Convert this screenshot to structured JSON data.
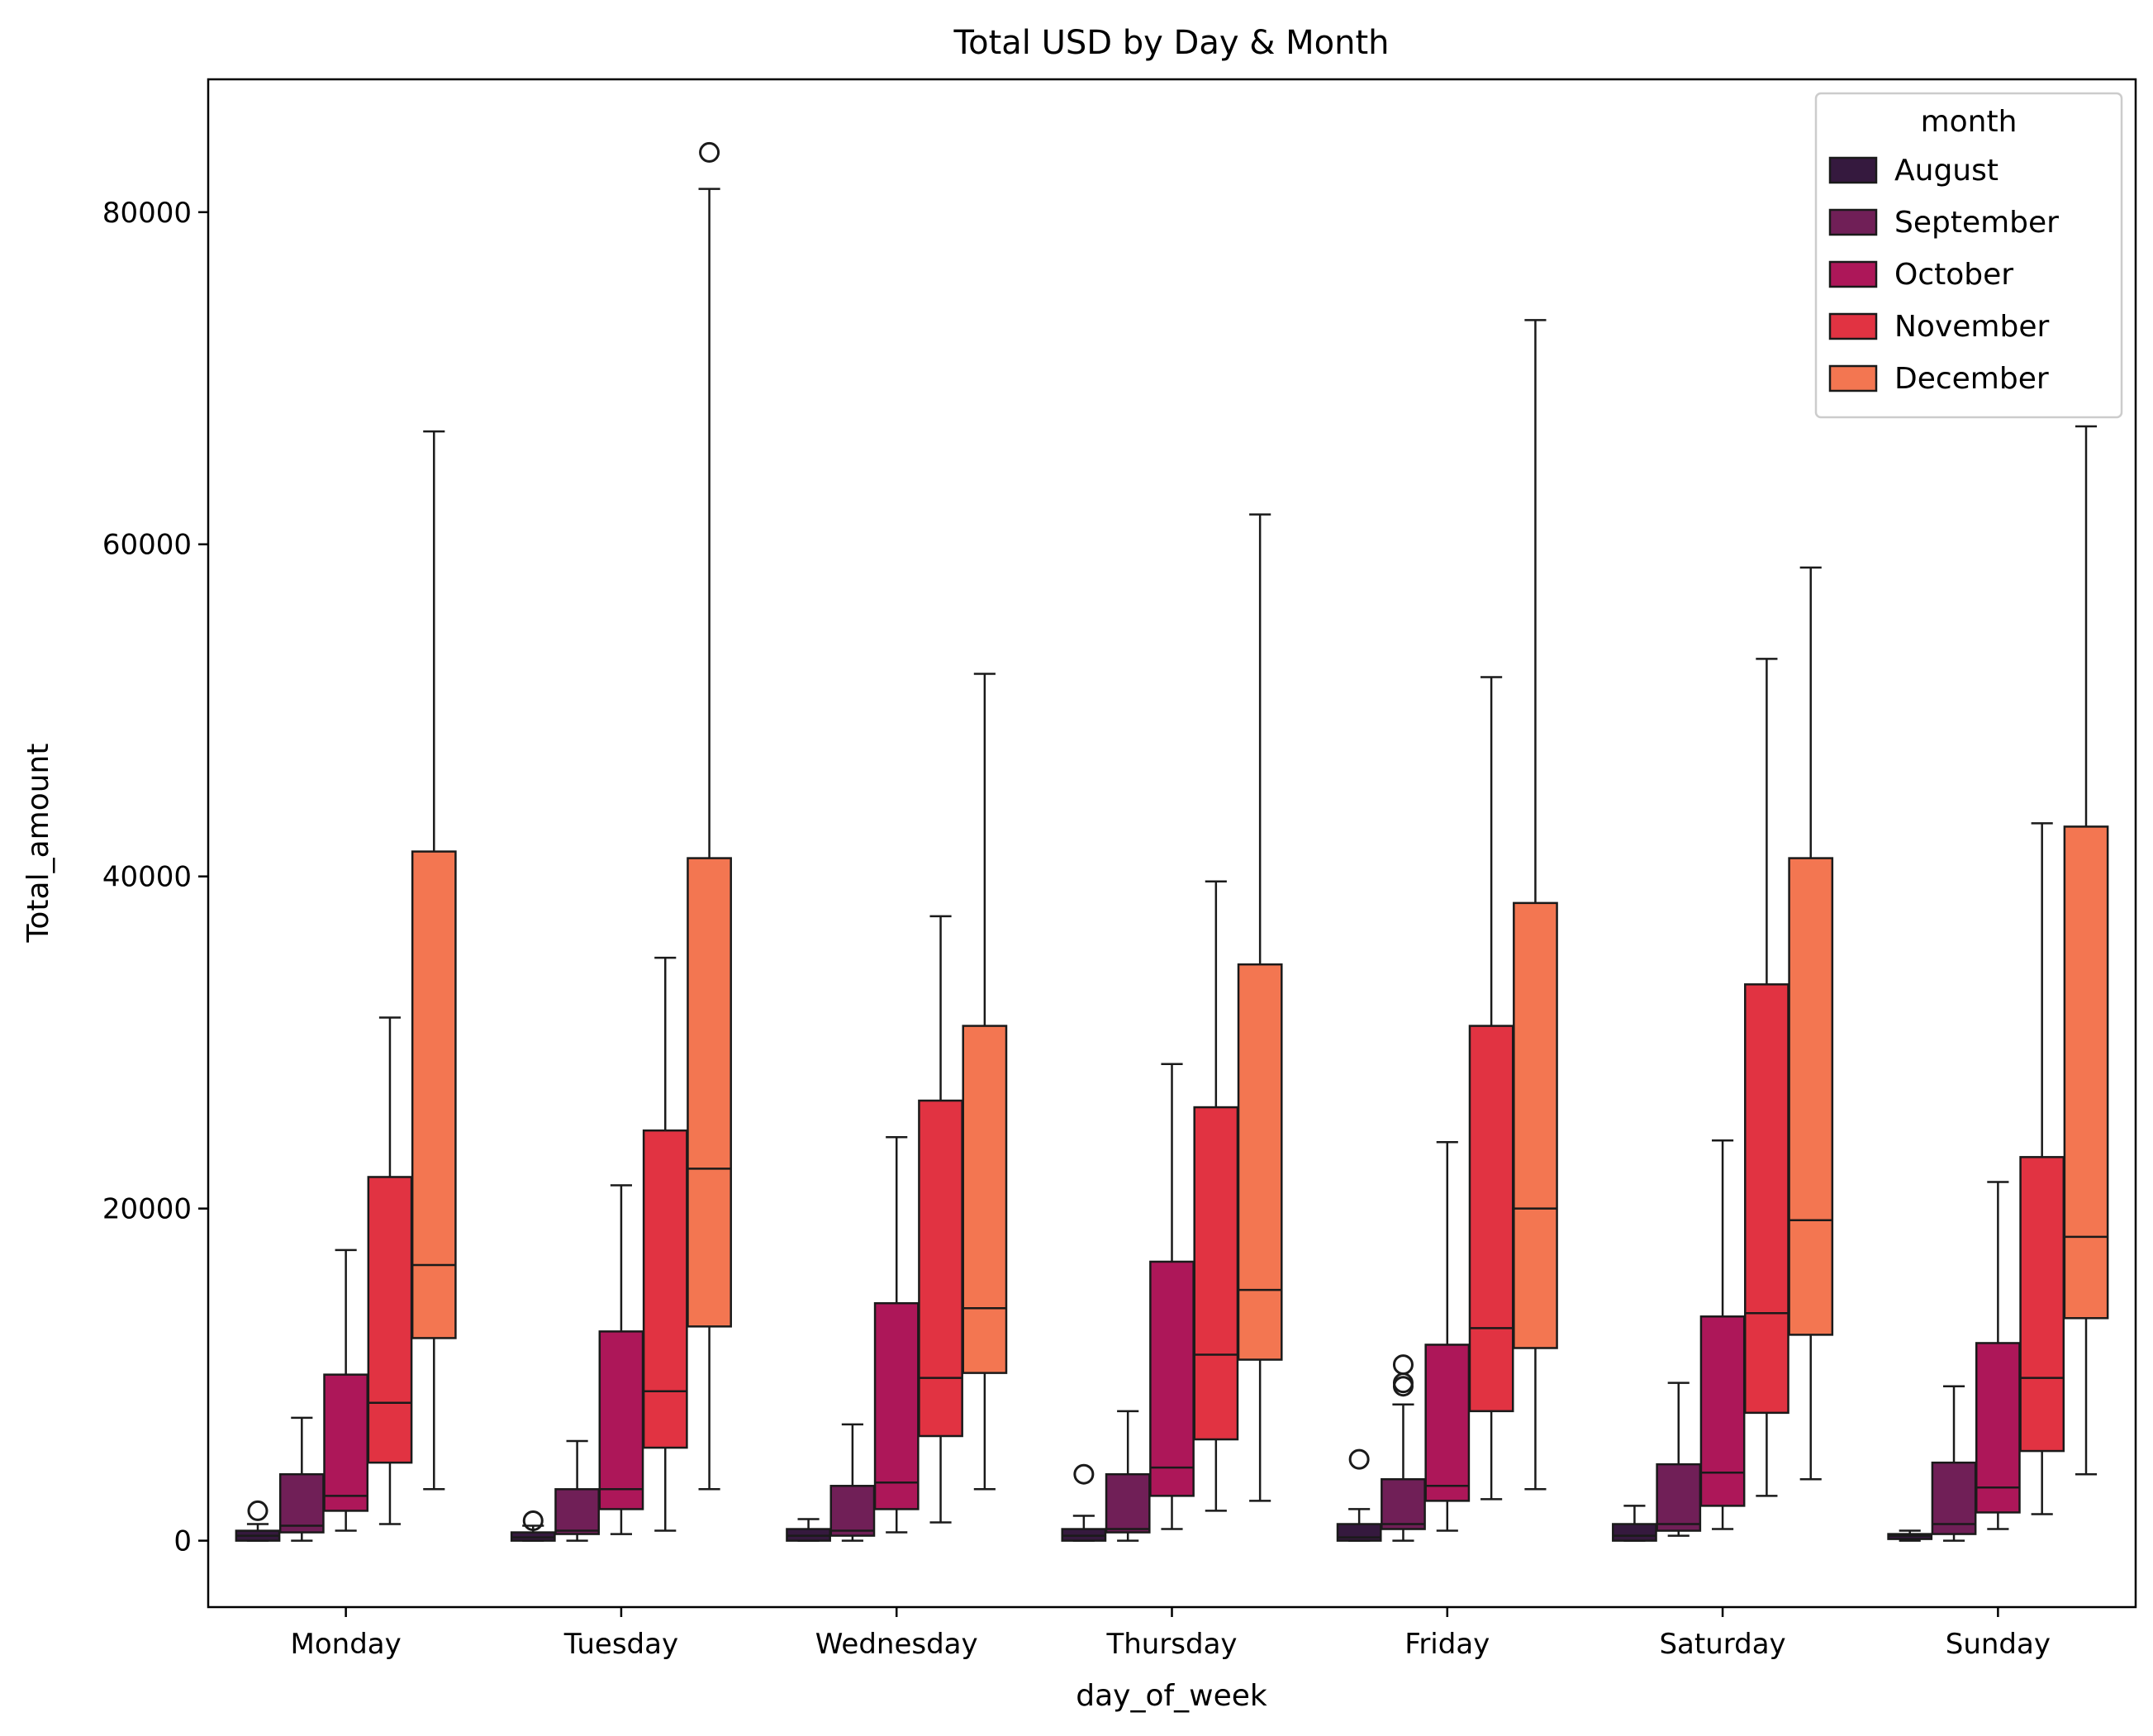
{
  "chart_data": {
    "type": "box",
    "title": "Total USD by Day & Month",
    "xlabel": "day_of_week",
    "ylabel": "Total_amount",
    "ylim": [
      -4000,
      88000
    ],
    "yticks": [
      0,
      20000,
      40000,
      60000,
      80000
    ],
    "categories": [
      "Monday",
      "Tuesday",
      "Wednesday",
      "Thursday",
      "Friday",
      "Saturday",
      "Sunday"
    ],
    "legend": {
      "title": "month",
      "position": "top-right"
    },
    "grid": false,
    "series": [
      {
        "name": "August",
        "color": "#35193e",
        "boxes": [
          {
            "q1": 0,
            "median": 300,
            "q3": 600,
            "whislo": 0,
            "whishi": 1000,
            "fliers": [
              1800
            ]
          },
          {
            "q1": 0,
            "median": 200,
            "q3": 500,
            "whislo": 0,
            "whishi": 900,
            "fliers": [
              1200
            ]
          },
          {
            "q1": 0,
            "median": 300,
            "q3": 700,
            "whislo": 0,
            "whishi": 1300,
            "fliers": []
          },
          {
            "q1": 0,
            "median": 300,
            "q3": 700,
            "whislo": 0,
            "whishi": 1500,
            "fliers": [
              4000
            ]
          },
          {
            "q1": 0,
            "median": 200,
            "q3": 1000,
            "whislo": 0,
            "whishi": 1900,
            "fliers": [
              4900
            ]
          },
          {
            "q1": 0,
            "median": 300,
            "q3": 1000,
            "whislo": 0,
            "whishi": 2100,
            "fliers": []
          },
          {
            "q1": 100,
            "median": 300,
            "q3": 400,
            "whislo": 0,
            "whishi": 600,
            "fliers": []
          }
        ]
      },
      {
        "name": "September",
        "color": "#701f57",
        "boxes": [
          {
            "q1": 500,
            "median": 900,
            "q3": 4000,
            "whislo": 0,
            "whishi": 7400,
            "fliers": []
          },
          {
            "q1": 400,
            "median": 600,
            "q3": 3100,
            "whislo": 0,
            "whishi": 6000,
            "fliers": []
          },
          {
            "q1": 300,
            "median": 600,
            "q3": 3300,
            "whislo": 0,
            "whishi": 7000,
            "fliers": []
          },
          {
            "q1": 500,
            "median": 700,
            "q3": 4000,
            "whislo": 0,
            "whishi": 7800,
            "fliers": []
          },
          {
            "q1": 700,
            "median": 1000,
            "q3": 3700,
            "whislo": 0,
            "whishi": 8200,
            "fliers": [
              9300,
              9500,
              10600
            ]
          },
          {
            "q1": 600,
            "median": 1000,
            "q3": 4600,
            "whislo": 300,
            "whishi": 9500,
            "fliers": []
          },
          {
            "q1": 400,
            "median": 1000,
            "q3": 4700,
            "whislo": 0,
            "whishi": 9300,
            "fliers": []
          }
        ]
      },
      {
        "name": "October",
        "color": "#ad1759",
        "boxes": [
          {
            "q1": 1800,
            "median": 2700,
            "q3": 10000,
            "whislo": 600,
            "whishi": 17500,
            "fliers": []
          },
          {
            "q1": 1900,
            "median": 3100,
            "q3": 12600,
            "whislo": 400,
            "whishi": 21400,
            "fliers": []
          },
          {
            "q1": 1900,
            "median": 3500,
            "q3": 14300,
            "whislo": 500,
            "whishi": 24300,
            "fliers": []
          },
          {
            "q1": 2700,
            "median": 4400,
            "q3": 16800,
            "whislo": 700,
            "whishi": 28700,
            "fliers": []
          },
          {
            "q1": 2400,
            "median": 3300,
            "q3": 11800,
            "whislo": 600,
            "whishi": 24000,
            "fliers": []
          },
          {
            "q1": 2100,
            "median": 4100,
            "q3": 13500,
            "whislo": 700,
            "whishi": 24100,
            "fliers": []
          },
          {
            "q1": 1700,
            "median": 3200,
            "q3": 11900,
            "whislo": 700,
            "whishi": 21600,
            "fliers": []
          }
        ]
      },
      {
        "name": "November",
        "color": "#e13342",
        "boxes": [
          {
            "q1": 4700,
            "median": 8300,
            "q3": 21900,
            "whislo": 1000,
            "whishi": 31500,
            "fliers": []
          },
          {
            "q1": 5600,
            "median": 9000,
            "q3": 24700,
            "whislo": 600,
            "whishi": 35100,
            "fliers": []
          },
          {
            "q1": 6300,
            "median": 9800,
            "q3": 26500,
            "whislo": 1100,
            "whishi": 37600,
            "fliers": []
          },
          {
            "q1": 6100,
            "median": 11200,
            "q3": 26100,
            "whislo": 1800,
            "whishi": 39700,
            "fliers": []
          },
          {
            "q1": 7800,
            "median": 12800,
            "q3": 31000,
            "whislo": 2500,
            "whishi": 52000,
            "fliers": []
          },
          {
            "q1": 7700,
            "median": 13700,
            "q3": 33500,
            "whislo": 2700,
            "whishi": 53100,
            "fliers": []
          },
          {
            "q1": 5400,
            "median": 9800,
            "q3": 23100,
            "whislo": 1600,
            "whishi": 43200,
            "fliers": []
          }
        ]
      },
      {
        "name": "December",
        "color": "#f37651",
        "boxes": [
          {
            "q1": 12200,
            "median": 16600,
            "q3": 41500,
            "whislo": 3100,
            "whishi": 66800,
            "fliers": []
          },
          {
            "q1": 12900,
            "median": 22400,
            "q3": 41100,
            "whislo": 3100,
            "whishi": 81400,
            "fliers": [
              83600
            ]
          },
          {
            "q1": 10100,
            "median": 14000,
            "q3": 31000,
            "whislo": 3100,
            "whishi": 52200,
            "fliers": []
          },
          {
            "q1": 10900,
            "median": 15100,
            "q3": 34700,
            "whislo": 2400,
            "whishi": 61800,
            "fliers": []
          },
          {
            "q1": 11600,
            "median": 20000,
            "q3": 38400,
            "whislo": 3100,
            "whishi": 73500,
            "fliers": []
          },
          {
            "q1": 12400,
            "median": 19300,
            "q3": 41100,
            "whislo": 3700,
            "whishi": 58600,
            "fliers": []
          },
          {
            "q1": 13400,
            "median": 18300,
            "q3": 43000,
            "whislo": 4000,
            "whishi": 67100,
            "fliers": []
          }
        ]
      }
    ]
  }
}
